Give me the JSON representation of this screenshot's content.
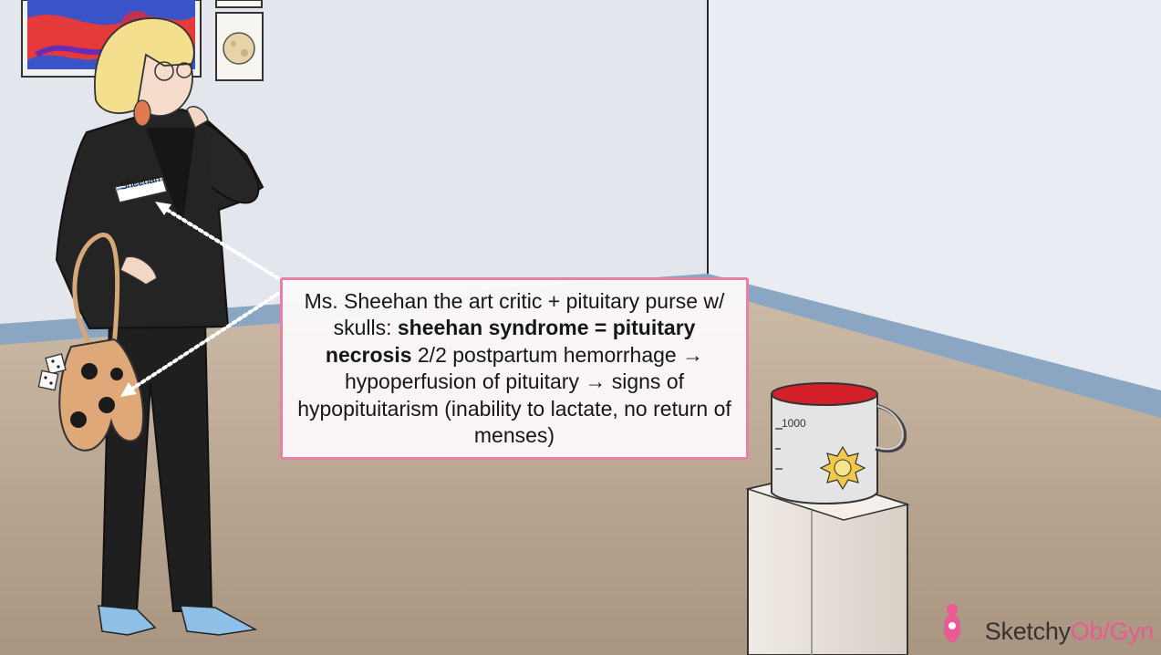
{
  "callout": {
    "line1_pre": "Ms. Sheehan the art critic + pituitary purse w/ skulls: ",
    "bold": "sheehan syndrome = pituitary necrosis",
    "line1_post": " 2/2 postpartum hemorrhage → hypoperfusion of pituitary → signs of hypopituitarism (inability to lactate, no return of menses)"
  },
  "scene": {
    "nametag_label": "Sheehan",
    "bucket_label": "1000"
  },
  "brand": {
    "prefix": "Sketchy",
    "suffix": "Ob/Gyn",
    "accent_color": "#ea5a95"
  },
  "colors": {
    "wall": "#e4e7ee",
    "floor": "#b9a691",
    "callout_border": "#e87fa6"
  }
}
